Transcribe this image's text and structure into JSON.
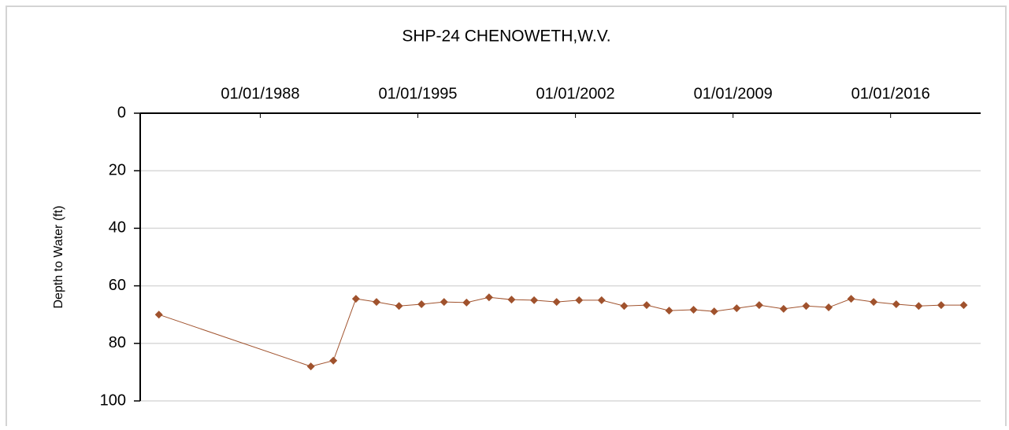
{
  "chart_data": {
    "type": "line",
    "title": "SHP-24  CHENOWETH,W.V.",
    "y_label": "Depth to Water (ft)",
    "x": [
      "1983-07-01",
      "1990-04-01",
      "1991-04-01",
      "1992-04-01",
      "1993-03-01",
      "1994-03-01",
      "1995-03-01",
      "1996-03-01",
      "1997-03-01",
      "1998-03-01",
      "1999-03-01",
      "2000-03-01",
      "2001-03-01",
      "2002-03-01",
      "2003-03-01",
      "2004-03-01",
      "2005-03-01",
      "2006-03-01",
      "2007-04-01",
      "2008-03-01",
      "2009-03-01",
      "2010-03-01",
      "2011-04-01",
      "2012-04-01",
      "2013-04-01",
      "2014-04-01",
      "2015-04-01",
      "2016-04-01",
      "2017-04-01",
      "2018-04-01",
      "2019-04-01"
    ],
    "series": [
      {
        "name": "SHP-24",
        "color": "#a0522d",
        "values": [
          70,
          88,
          86,
          64.5,
          65.6,
          67,
          66.4,
          65.6,
          65.8,
          64,
          64.8,
          65,
          65.6,
          65,
          65,
          67,
          66.7,
          68.6,
          68.3,
          68.9,
          67.8,
          66.7,
          68,
          67,
          67.5,
          64.5,
          65.6,
          66.4,
          67,
          66.7,
          66.7
        ]
      }
    ],
    "xlim": [
      "1982-09-01",
      "2020-01-01"
    ],
    "xticks": [
      {
        "value": "1988-01-01",
        "label": "01/01/1988"
      },
      {
        "value": "1995-01-01",
        "label": "01/01/1995"
      },
      {
        "value": "2002-01-01",
        "label": "01/01/2002"
      },
      {
        "value": "2009-01-01",
        "label": "01/01/2009"
      },
      {
        "value": "2016-01-01",
        "label": "01/01/2016"
      }
    ],
    "ylim": [
      0,
      100
    ],
    "yticks": [
      0,
      20,
      40,
      60,
      80,
      100
    ],
    "y_inverted": true,
    "x_axis_position": "top",
    "grid": true
  }
}
